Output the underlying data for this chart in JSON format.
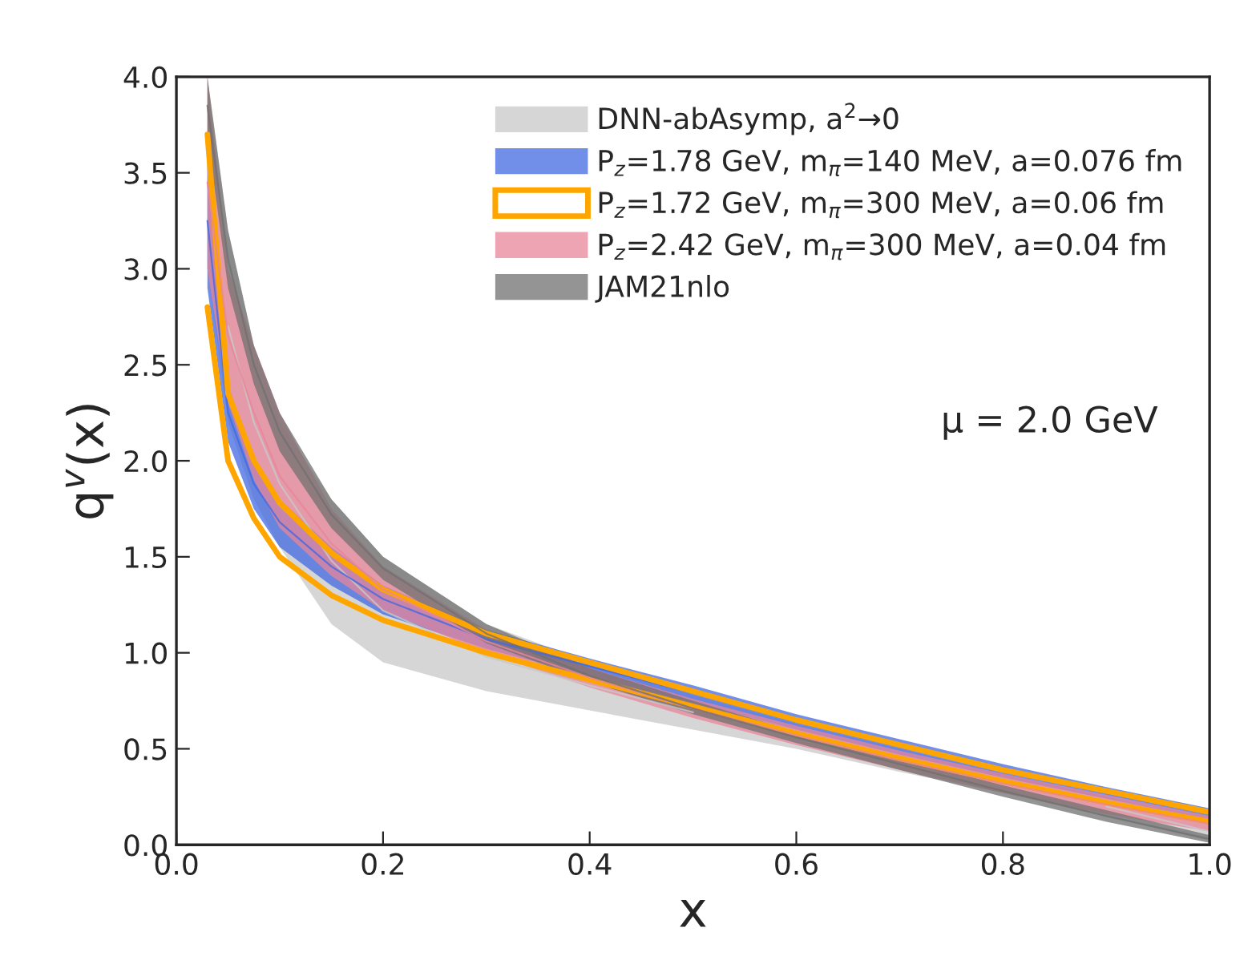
{
  "chart_data": {
    "type": "line",
    "xlabel": "x",
    "ylabel": "q$^{v}$(x)",
    "x": [
      0.03,
      0.05,
      0.075,
      0.1,
      0.15,
      0.2,
      0.3,
      0.4,
      0.5,
      0.6,
      0.7,
      0.8,
      0.9,
      1.0
    ],
    "series": [
      {
        "name": "DNN-abAsymp, a$^{2}$→0",
        "color": "#c8c8c8",
        "values": [
          null,
          2.7,
          2.2,
          1.88,
          1.48,
          1.22,
          0.98,
          0.83,
          0.69,
          null,
          null,
          null,
          0.2,
          0.07
        ],
        "lower": [
          3.0,
          2.2,
          1.8,
          1.55,
          1.15,
          0.95,
          0.8,
          0.7,
          0.6,
          0.5,
          0.38,
          0.27,
          0.15,
          0.02
        ],
        "upper": [
          4.0,
          3.2,
          2.6,
          2.2,
          1.8,
          1.5,
          1.15,
          0.95,
          0.78,
          0.63,
          0.5,
          0.37,
          0.25,
          0.12
        ]
      },
      {
        "name": "P$_{z}$=1.78 GeV, m$_{π}$=140 MeV, a=0.076 fm",
        "color": "#4169e1",
        "values": [
          3.25,
          2.25,
          1.88,
          1.68,
          1.45,
          1.28,
          1.07,
          0.93,
          0.79,
          0.64,
          0.51,
          0.39,
          0.27,
          0.16
        ],
        "lower": [
          2.9,
          2.1,
          1.75,
          1.55,
          1.35,
          1.2,
          1.02,
          0.88,
          0.74,
          0.6,
          0.47,
          0.35,
          0.24,
          0.13
        ],
        "upper": [
          3.6,
          2.4,
          2.0,
          1.8,
          1.55,
          1.35,
          1.12,
          0.97,
          0.83,
          0.68,
          0.55,
          0.42,
          0.3,
          0.19
        ]
      },
      {
        "name": "P$_{z}$=1.72 GeV, m$_{π}$=300 MeV, a=0.06 fm",
        "color": "#ffa500",
        "values": [
          3.7,
          2.35,
          2.0,
          1.78,
          1.52,
          1.33,
          1.1,
          0.95,
          0.8,
          0.65,
          0.52,
          0.39,
          0.28,
          0.17
        ]
      },
      {
        "color": "#ffa500",
        "values": [
          2.8,
          2.0,
          1.7,
          1.5,
          1.3,
          1.17,
          1.0,
          0.86,
          0.72,
          0.58,
          0.45,
          0.33,
          0.22,
          0.12
        ]
      },
      {
        "name": "P$_{z}$=2.42 GeV, m$_{π}$=300 MeV, a=0.04 fm",
        "color": "#e8869a",
        "values": [
          3.45,
          2.65,
          2.25,
          1.92,
          1.57,
          1.33,
          1.06,
          0.87,
          0.71,
          0.57,
          0.44,
          0.32,
          0.21,
          0.11
        ],
        "lower": [
          3.0,
          2.3,
          1.9,
          1.65,
          1.4,
          1.22,
          1.0,
          0.82,
          0.66,
          0.52,
          0.39,
          0.27,
          0.16,
          0.07
        ],
        "upper": [
          4.0,
          3.0,
          2.6,
          2.25,
          1.75,
          1.45,
          1.12,
          0.92,
          0.76,
          0.62,
          0.49,
          0.37,
          0.26,
          0.15
        ]
      },
      {
        "name": "JAM21nlo",
        "color": "#707070",
        "values": [
          3.85,
          3.05,
          2.5,
          2.15,
          1.72,
          1.44,
          1.1,
          0.88,
          0.71,
          0.56,
          0.42,
          0.28,
          0.15,
          0.03
        ],
        "lower": [
          3.7,
          2.9,
          2.4,
          2.05,
          1.65,
          1.38,
          1.05,
          0.85,
          0.68,
          0.53,
          0.39,
          0.25,
          0.12,
          0.01
        ],
        "upper": [
          4.0,
          3.2,
          2.6,
          2.25,
          1.8,
          1.5,
          1.15,
          0.92,
          0.75,
          0.59,
          0.45,
          0.31,
          0.18,
          0.05
        ]
      }
    ],
    "annotations": [
      "μ = 2.0 GeV"
    ],
    "xlim": [
      0.0,
      1.0
    ],
    "xticks": [
      {
        "value": 0.0,
        "label": "0.0"
      },
      0.2,
      0.4,
      0.6,
      0.8,
      {
        "value": 1.0,
        "label": "1.0"
      }
    ],
    "ylim": [
      0.0,
      4.0
    ],
    "yticks": [
      {
        "value": 0.0,
        "label": "0.0"
      },
      0.5,
      {
        "value": 1.0,
        "label": "1.0"
      },
      1.5,
      {
        "value": 2.0,
        "label": "2.0"
      },
      2.5,
      {
        "value": 3.0,
        "label": "3.0"
      },
      3.5,
      {
        "value": 4.0,
        "label": "4.0"
      }
    ],
    "legend": "top right",
    "grid": false
  }
}
